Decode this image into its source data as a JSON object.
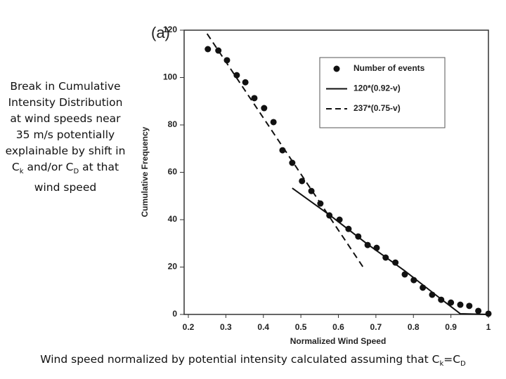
{
  "chart_data": {
    "type": "scatter",
    "panel_label": "(a)",
    "x_label": "Normalized Wind Speed",
    "y_label": "Cumulative Frequency",
    "xlim": [
      0.2,
      1
    ],
    "ylim": [
      0,
      120
    ],
    "xticks": [
      0.2,
      0.3,
      0.4,
      0.5,
      0.6,
      0.7,
      0.8,
      0.9,
      1
    ],
    "yticks": [
      0,
      20,
      40,
      60,
      80,
      100,
      120
    ],
    "series": [
      {
        "name": "Number of events",
        "color": "#111111",
        "style": "markers",
        "x": [
          0.252,
          0.28,
          0.303,
          0.329,
          0.352,
          0.376,
          0.402,
          0.427,
          0.451,
          0.477,
          0.503,
          0.528,
          0.552,
          0.576,
          0.603,
          0.627,
          0.653,
          0.678,
          0.702,
          0.726,
          0.752,
          0.777,
          0.801,
          0.825,
          0.85,
          0.874,
          0.9,
          0.925,
          0.949,
          0.973,
          1.0
        ],
        "values": [
          112,
          111.4,
          107.3,
          101,
          98,
          91.3,
          87.1,
          81.2,
          69.3,
          64,
          56.3,
          52.1,
          46.8,
          41.8,
          40,
          36.1,
          32.9,
          29.3,
          28.1,
          24,
          21.9,
          16.9,
          14.5,
          11.3,
          8.3,
          6.2,
          5,
          4.1,
          3.6,
          1.5,
          0.3
        ]
      },
      {
        "name": "120*(0.92-v)",
        "color": "#111111",
        "style": "solid",
        "x": [
          0.477,
          0.578,
          0.678,
          0.777,
          0.859,
          0.925,
          1.0
        ],
        "values": [
          53.3,
          41.8,
          29.6,
          18.4,
          8.3,
          0.3,
          0
        ]
      },
      {
        "name": "237*(0.75-v)",
        "color": "#111111",
        "style": "dashed",
        "x": [
          0.25,
          0.67
        ],
        "values": [
          118.5,
          19
        ]
      }
    ]
  },
  "side_note": [
    "Break in Cumulative Intensity Distribution at wind speeds near 35 m/s potentially explainable by shift in C",
    "k",
    " and/or C",
    "D",
    " at that wind speed"
  ],
  "caption": [
    "Wind speed normalized by potential intensity calculated assuming that C",
    "k",
    "=C",
    "D"
  ]
}
